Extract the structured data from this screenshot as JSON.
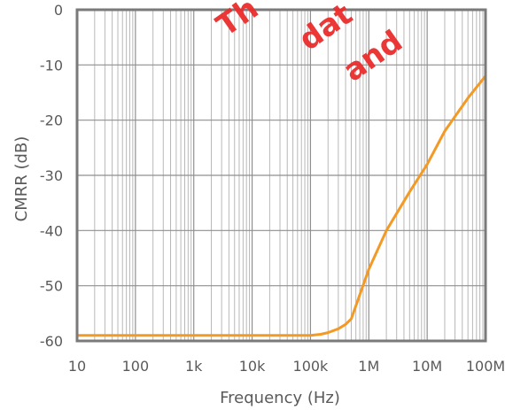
{
  "chart_data": {
    "type": "line",
    "title": "",
    "xlabel": "Frequency (Hz)",
    "ylabel": "CMRR (dB)",
    "x_scale": "log",
    "xlim": [
      10,
      100000000
    ],
    "ylim": [
      -60,
      0
    ],
    "x_ticks": [
      10,
      100,
      1000,
      10000,
      100000,
      1000000,
      10000000,
      100000000
    ],
    "x_tick_labels": [
      "10",
      "100",
      "1k",
      "10k",
      "100k",
      "1M",
      "10M",
      "100M"
    ],
    "y_ticks": [
      0,
      -10,
      -20,
      -30,
      -40,
      -50,
      -60
    ],
    "y_tick_labels": [
      "0",
      "-10",
      "-20",
      "-30",
      "-40",
      "-50",
      "-60"
    ],
    "grid": true,
    "series": [
      {
        "color": "#f39a26",
        "x": [
          10,
          100,
          1000,
          10000,
          100000,
          150000,
          200000,
          300000,
          400000,
          500000,
          1000000,
          2000000,
          5000000,
          10000000,
          20000000,
          50000000,
          100000000
        ],
        "y": [
          -59,
          -59,
          -59,
          -59,
          -59,
          -58.8,
          -58.5,
          -57.8,
          -57,
          -56,
          -47,
          -40,
          -33,
          -28,
          -22,
          -16,
          -12
        ]
      }
    ],
    "watermark": {
      "text_1": "Th",
      "text_2": "dat",
      "text_3": "and",
      "color": "#ec2d2d"
    }
  }
}
